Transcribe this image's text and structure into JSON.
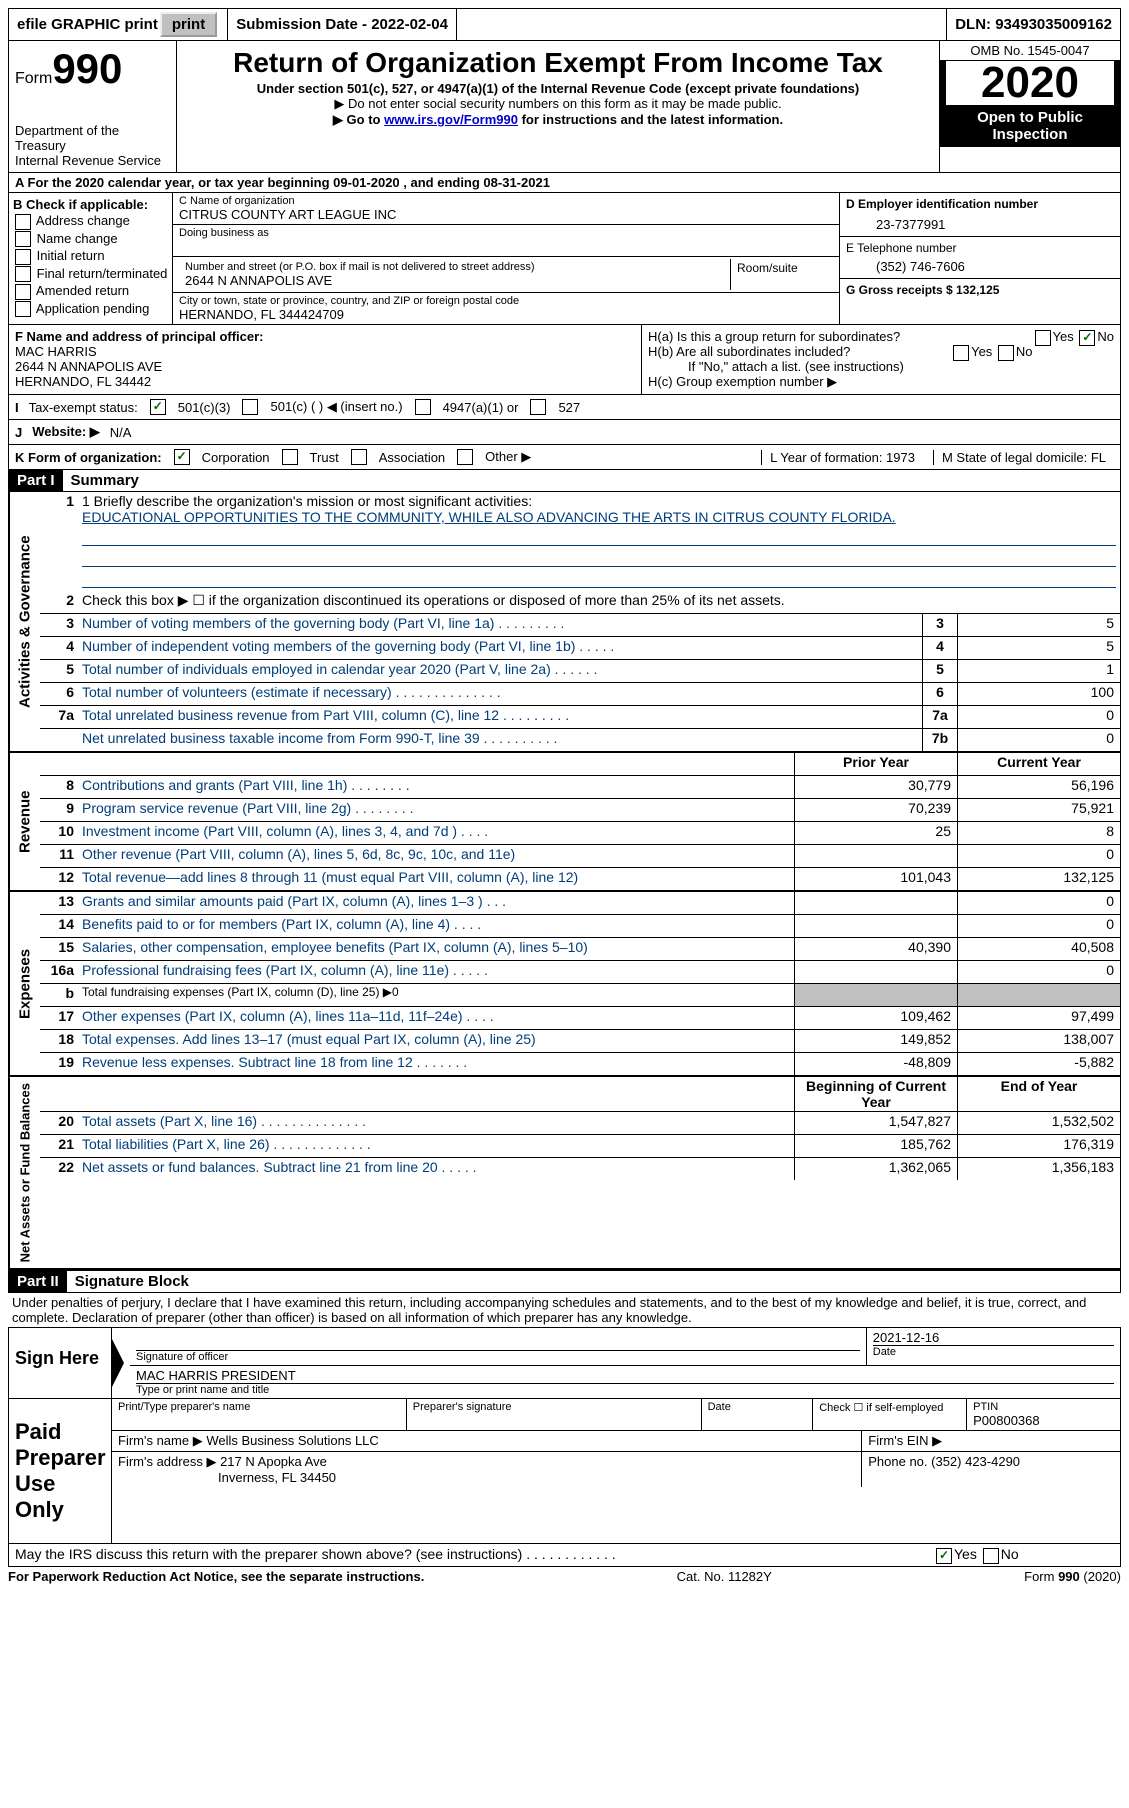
{
  "topbar": {
    "efile": "efile GRAPHIC print",
    "submission_label": "Submission Date - 2022-02-04",
    "dln": "DLN: 93493035009162"
  },
  "header": {
    "form_label": "Form",
    "form_number": "990",
    "dept": "Department of the Treasury",
    "irs": "Internal Revenue Service",
    "title": "Return of Organization Exempt From Income Tax",
    "subtitle": "Under section 501(c), 527, or 4947(a)(1) of the Internal Revenue Code (except private foundations)",
    "note1": "▶ Do not enter social security numbers on this form as it may be made public.",
    "note2_prefix": "▶ Go to ",
    "note2_link": "www.irs.gov/Form990",
    "note2_suffix": " for instructions and the latest information.",
    "omb": "OMB No. 1545-0047",
    "year": "2020",
    "open": "Open to Public Inspection"
  },
  "period": "For the 2020 calendar year, or tax year beginning 09-01-2020    , and ending 08-31-2021",
  "boxB": {
    "label": "B Check if applicable:",
    "items": [
      "Address change",
      "Name change",
      "Initial return",
      "Final return/terminated",
      "Amended return",
      "Application pending"
    ]
  },
  "boxC": {
    "name_label": "C Name of organization",
    "name": "CITRUS COUNTY ART LEAGUE INC",
    "dba_label": "Doing business as",
    "street_label": "Number and street (or P.O. box if mail is not delivered to street address)",
    "street": "2644 N ANNAPOLIS AVE",
    "room_label": "Room/suite",
    "city_label": "City or town, state or province, country, and ZIP or foreign postal code",
    "city": "HERNANDO, FL  344424709"
  },
  "boxD": {
    "label": "D Employer identification number",
    "value": "23-7377991"
  },
  "boxE": {
    "label": "E Telephone number",
    "value": "(352) 746-7606"
  },
  "boxG": {
    "label": "G Gross receipts $ 132,125"
  },
  "boxF": {
    "label": "F  Name and address of principal officer:",
    "name": "MAC HARRIS",
    "addr1": "2644 N ANNAPOLIS AVE",
    "addr2": "HERNANDO, FL  34442"
  },
  "boxH": {
    "ha": "H(a)  Is this a group return for subordinates?",
    "hb": "H(b)  Are all subordinates included?",
    "hb_note": "If \"No,\" attach a list. (see instructions)",
    "hc": "H(c)  Group exemption number ▶"
  },
  "taxexempt": {
    "label": "Tax-exempt status:",
    "c3": "501(c)(3)",
    "c": "501(c) (  ) ◀ (insert no.)",
    "a1": "4947(a)(1) or",
    "s527": "527"
  },
  "website": {
    "label": "Website: ▶",
    "value": "N/A"
  },
  "boxK": {
    "label": "K Form of organization:",
    "corp": "Corporation",
    "trust": "Trust",
    "assoc": "Association",
    "other": "Other ▶",
    "l": "L Year of formation: 1973",
    "m": "M State of legal domicile: FL"
  },
  "part1": {
    "header": "Part I",
    "title": "Summary",
    "line1_label": "1  Briefly describe the organization's mission or most significant activities:",
    "mission": "EDUCATIONAL OPPORTUNITIES TO THE COMMUNITY, WHILE ALSO ADVANCING THE ARTS IN CITRUS COUNTY FLORIDA.",
    "line2": "Check this box ▶ ☐  if the organization discontinued its operations or disposed of more than 25% of its net assets.",
    "lines_gov": [
      {
        "n": "3",
        "d": "Number of voting members of the governing body (Part VI, line 1a)   .   .   .   .   .   .   .   .   .",
        "b": "3",
        "v": "5"
      },
      {
        "n": "4",
        "d": "Number of independent voting members of the governing body (Part VI, line 1b)   .   .   .   .   .",
        "b": "4",
        "v": "5"
      },
      {
        "n": "5",
        "d": "Total number of individuals employed in calendar year 2020 (Part V, line 2a)   .   .   .   .   .   .",
        "b": "5",
        "v": "1"
      },
      {
        "n": "6",
        "d": "Total number of volunteers (estimate if necessary)   .   .   .   .   .   .   .   .   .   .   .   .   .   .",
        "b": "6",
        "v": "100"
      },
      {
        "n": "7a",
        "d": "Total unrelated business revenue from Part VIII, column (C), line 12   .   .   .   .   .   .   .   .   .",
        "b": "7a",
        "v": "0"
      },
      {
        "n": "",
        "d": "Net unrelated business taxable income from Form 990-T, line 39   .   .   .   .   .   .   .   .   .   .",
        "b": "7b",
        "v": "0"
      }
    ],
    "col_prior": "Prior Year",
    "col_current": "Current Year",
    "revenue": [
      {
        "n": "8",
        "d": "Contributions and grants (Part VIII, line 1h)   .   .   .   .   .   .   .   .",
        "p": "30,779",
        "c": "56,196"
      },
      {
        "n": "9",
        "d": "Program service revenue (Part VIII, line 2g)   .   .   .   .   .   .   .   .",
        "p": "70,239",
        "c": "75,921"
      },
      {
        "n": "10",
        "d": "Investment income (Part VIII, column (A), lines 3, 4, and 7d )   .   .   .   .",
        "p": "25",
        "c": "8"
      },
      {
        "n": "11",
        "d": "Other revenue (Part VIII, column (A), lines 5, 6d, 8c, 9c, 10c, and 11e)",
        "p": "",
        "c": "0"
      },
      {
        "n": "12",
        "d": "Total revenue—add lines 8 through 11 (must equal Part VIII, column (A), line 12)",
        "p": "101,043",
        "c": "132,125"
      }
    ],
    "expenses": [
      {
        "n": "13",
        "d": "Grants and similar amounts paid (Part IX, column (A), lines 1–3 )   .   .   .",
        "p": "",
        "c": "0"
      },
      {
        "n": "14",
        "d": "Benefits paid to or for members (Part IX, column (A), line 4)   .   .   .   .",
        "p": "",
        "c": "0"
      },
      {
        "n": "15",
        "d": "Salaries, other compensation, employee benefits (Part IX, column (A), lines 5–10)",
        "p": "40,390",
        "c": "40,508"
      },
      {
        "n": "16a",
        "d": "Professional fundraising fees (Part IX, column (A), line 11e)   .   .   .   .   .",
        "p": "",
        "c": "0"
      },
      {
        "n": "b",
        "d": "Total fundraising expenses (Part IX, column (D), line 25) ▶0",
        "p": "SHADED",
        "c": "SHADED"
      },
      {
        "n": "17",
        "d": "Other expenses (Part IX, column (A), lines 11a–11d, 11f–24e)   .   .   .   .",
        "p": "109,462",
        "c": "97,499"
      },
      {
        "n": "18",
        "d": "Total expenses. Add lines 13–17 (must equal Part IX, column (A), line 25)",
        "p": "149,852",
        "c": "138,007"
      },
      {
        "n": "19",
        "d": "Revenue less expenses. Subtract line 18 from line 12   .   .   .   .   .   .   .",
        "p": "-48,809",
        "c": "-5,882"
      }
    ],
    "col_begin": "Beginning of Current Year",
    "col_end": "End of Year",
    "netassets": [
      {
        "n": "20",
        "d": "Total assets (Part X, line 16)   .   .   .   .   .   .   .   .   .   .   .   .   .   .",
        "p": "1,547,827",
        "c": "1,532,502"
      },
      {
        "n": "21",
        "d": "Total liabilities (Part X, line 26)   .   .   .   .   .   .   .   .   .   .   .   .   .",
        "p": "185,762",
        "c": "176,319"
      },
      {
        "n": "22",
        "d": "Net assets or fund balances. Subtract line 21 from line 20   .   .   .   .   .",
        "p": "1,362,065",
        "c": "1,356,183"
      }
    ],
    "vlabels": {
      "gov": "Activities & Governance",
      "rev": "Revenue",
      "exp": "Expenses",
      "net": "Net Assets or Fund Balances"
    }
  },
  "part2": {
    "header": "Part II",
    "title": "Signature Block",
    "perjury": "Under penalties of perjury, I declare that I have examined this return, including accompanying schedules and statements, and to the best of my knowledge and belief, it is true, correct, and complete. Declaration of preparer (other than officer) is based on all information of which preparer has any knowledge."
  },
  "sign": {
    "left": "Sign Here",
    "sig_label": "Signature of officer",
    "date_val": "2021-12-16",
    "date_label": "Date",
    "name": "MAC HARRIS PRESIDENT",
    "name_label": "Type or print name and title"
  },
  "paid": {
    "left": "Paid Preparer Use Only",
    "print_label": "Print/Type preparer's name",
    "sig_label": "Preparer's signature",
    "date_label": "Date",
    "check_label": "Check ☐ if self-employed",
    "ptin_label": "PTIN",
    "ptin": "P00800368",
    "firm_name_label": "Firm's name     ▶",
    "firm_name": "Wells Business Solutions LLC",
    "firm_ein_label": "Firm's EIN ▶",
    "firm_addr_label": "Firm's address ▶",
    "firm_addr1": "217 N Apopka Ave",
    "firm_addr2": "Inverness, FL  34450",
    "phone_label": "Phone no. (352) 423-4290"
  },
  "footer": {
    "discuss": "May the IRS discuss this return with the preparer shown above? (see instructions)   .   .   .   .   .   .   .   .   .   .   .   .",
    "paperwork": "For Paperwork Reduction Act Notice, see the separate instructions.",
    "cat": "Cat. No. 11282Y",
    "form": "Form 990 (2020)"
  }
}
